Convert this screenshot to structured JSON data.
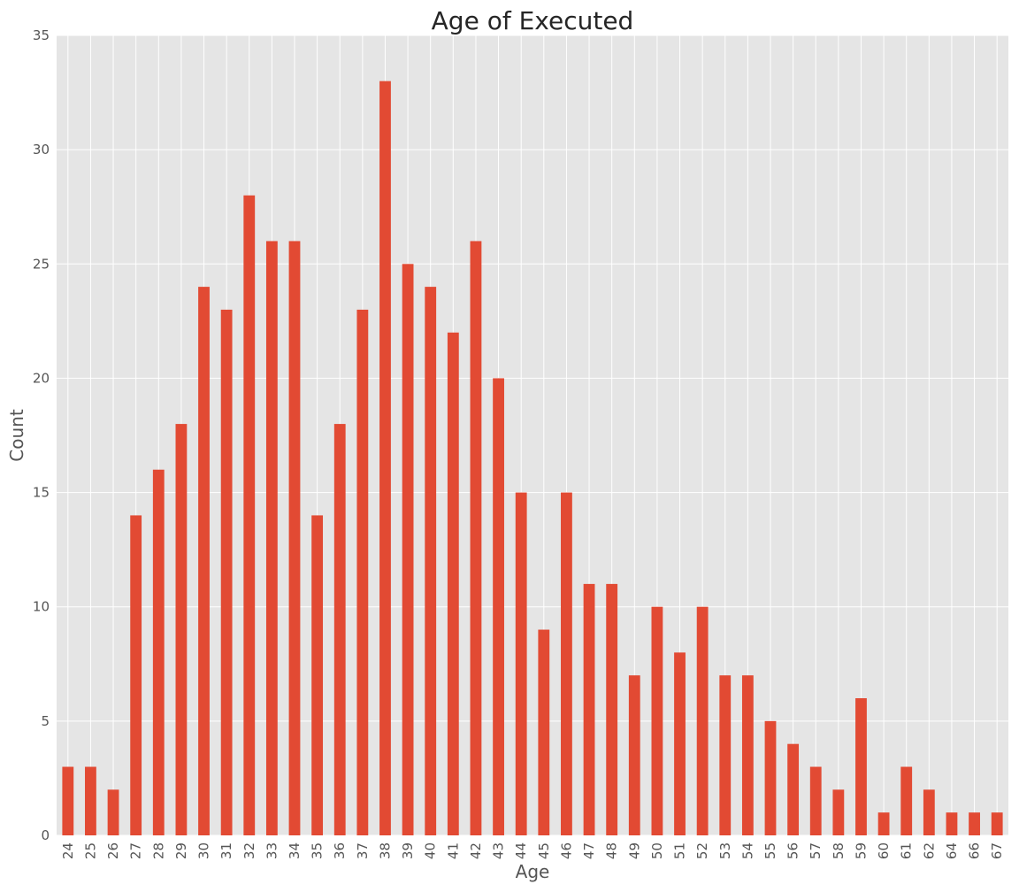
{
  "chart_data": {
    "type": "bar",
    "title": "Age of Executed",
    "xlabel": "Age",
    "ylabel": "Count",
    "ylim": [
      0,
      35
    ],
    "yticks": [
      0,
      5,
      10,
      15,
      20,
      25,
      30,
      35
    ],
    "grid": true,
    "categories": [
      "24",
      "25",
      "26",
      "27",
      "28",
      "29",
      "30",
      "31",
      "32",
      "33",
      "34",
      "35",
      "36",
      "37",
      "38",
      "39",
      "40",
      "41",
      "42",
      "43",
      "44",
      "45",
      "46",
      "47",
      "48",
      "49",
      "50",
      "51",
      "52",
      "53",
      "54",
      "55",
      "56",
      "57",
      "58",
      "59",
      "60",
      "61",
      "62",
      "64",
      "66",
      "67"
    ],
    "values": [
      3,
      3,
      2,
      14,
      16,
      18,
      24,
      23,
      28,
      26,
      26,
      14,
      18,
      23,
      33,
      25,
      24,
      22,
      26,
      20,
      15,
      9,
      15,
      11,
      11,
      7,
      10,
      8,
      10,
      7,
      7,
      5,
      4,
      3,
      2,
      6,
      1,
      3,
      2,
      1,
      1,
      1
    ],
    "colors": {
      "bar": "#e24a33",
      "background": "#e5e5e5",
      "grid": "#ffffff"
    }
  }
}
